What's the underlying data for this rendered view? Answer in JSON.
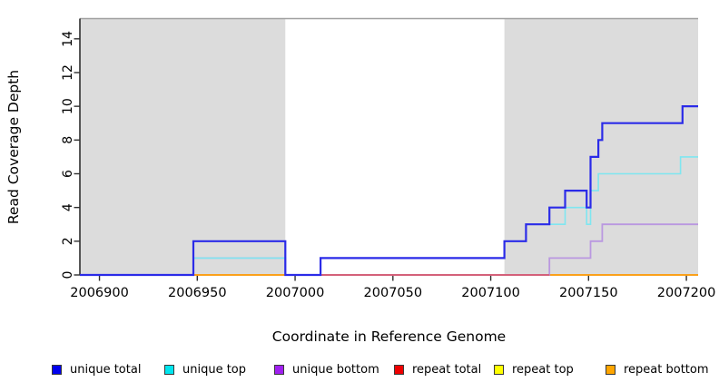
{
  "figure": {
    "x_title": "Coordinate in Reference Genome",
    "y_title": "Read Coverage Depth"
  },
  "chart_data": {
    "type": "line",
    "subtype": "step-coverage-plot",
    "xlabel": "Coordinate in Reference Genome",
    "ylabel": "Read Coverage Depth",
    "xlim": [
      2006890,
      2007206
    ],
    "ylim": [
      0,
      15.2
    ],
    "x_ticks": [
      2006900,
      2006950,
      2007000,
      2007050,
      2007100,
      2007150,
      2007200
    ],
    "y_ticks": [
      0,
      2,
      4,
      6,
      8,
      10,
      12,
      14
    ],
    "grid": "off",
    "legend_position": "bottom",
    "shaded_regions": [
      {
        "name": "repeat-region-left",
        "x0": 2006890,
        "x1": 2006995,
        "color": "#DCDCDC"
      },
      {
        "name": "repeat-region-right",
        "x0": 2007107,
        "x1": 2007206,
        "color": "#DCDCDC"
      }
    ],
    "top_border_color": "#A0A0A0",
    "axis_color": "#2f2f2f",
    "series": [
      {
        "name": "repeat top",
        "color": "#FFFF00",
        "opacity": 1,
        "width": 1.4,
        "points": [
          [
            2006948,
            0
          ],
          [
            2007206,
            0
          ]
        ]
      },
      {
        "name": "repeat bottom",
        "color": "#FF9912",
        "opacity": 1,
        "width": 1.8,
        "points": [
          [
            2006948,
            0
          ],
          [
            2007206,
            0
          ]
        ]
      },
      {
        "name": "unique bottom",
        "color": "#B48CE0",
        "opacity": 0.85,
        "width": 1.8,
        "points": [
          [
            2006890,
            0
          ],
          [
            2006948,
            0
          ],
          [
            2006948,
            1
          ],
          [
            2006995,
            1
          ],
          [
            2006995,
            0
          ],
          [
            2007130,
            0
          ],
          [
            2007130,
            1
          ],
          [
            2007151,
            1
          ],
          [
            2007151,
            2
          ],
          [
            2007157,
            2
          ],
          [
            2007157,
            3
          ],
          [
            2007206,
            3
          ]
        ]
      },
      {
        "name": "repeat total",
        "color": "#D84868",
        "opacity": 0.9,
        "width": 1.6,
        "points": [
          [
            2007013,
            0
          ],
          [
            2007130,
            0
          ]
        ]
      },
      {
        "name": "unique top",
        "color": "#7FE6F0",
        "opacity": 1,
        "width": 1.6,
        "points": [
          [
            2006890,
            0
          ],
          [
            2006948,
            0
          ],
          [
            2006948,
            1
          ],
          [
            2006995,
            1
          ],
          [
            2006995,
            0
          ],
          [
            2007013,
            0
          ],
          [
            2007013,
            1
          ],
          [
            2007107,
            1
          ],
          [
            2007107,
            2
          ],
          [
            2007118,
            2
          ],
          [
            2007118,
            3
          ],
          [
            2007138,
            3
          ],
          [
            2007138,
            4
          ],
          [
            2007149,
            4
          ],
          [
            2007149,
            3
          ],
          [
            2007151,
            3
          ],
          [
            2007151,
            5
          ],
          [
            2007155,
            5
          ],
          [
            2007155,
            6
          ],
          [
            2007197,
            6
          ],
          [
            2007197,
            7
          ],
          [
            2007206,
            7
          ]
        ]
      },
      {
        "name": "unique total",
        "color": "#2B2BE8",
        "opacity": 1,
        "width": 2.2,
        "points": [
          [
            2006890,
            0
          ],
          [
            2006948,
            0
          ],
          [
            2006948,
            2
          ],
          [
            2006995,
            2
          ],
          [
            2006995,
            0
          ],
          [
            2007013,
            0
          ],
          [
            2007013,
            1
          ],
          [
            2007107,
            1
          ],
          [
            2007107,
            2
          ],
          [
            2007118,
            2
          ],
          [
            2007118,
            3
          ],
          [
            2007130,
            3
          ],
          [
            2007130,
            4
          ],
          [
            2007138,
            4
          ],
          [
            2007138,
            5
          ],
          [
            2007149,
            5
          ],
          [
            2007149,
            4
          ],
          [
            2007151,
            4
          ],
          [
            2007151,
            7
          ],
          [
            2007155,
            7
          ],
          [
            2007155,
            8
          ],
          [
            2007157,
            8
          ],
          [
            2007157,
            9
          ],
          [
            2007198,
            9
          ],
          [
            2007198,
            10
          ],
          [
            2007206,
            10
          ]
        ]
      }
    ],
    "legend": [
      {
        "label": "unique total",
        "color": "#0000EE"
      },
      {
        "label": "unique top",
        "color": "#00E5EE"
      },
      {
        "label": "unique bottom",
        "color": "#A020F0"
      },
      {
        "label": "repeat total",
        "color": "#EE0000"
      },
      {
        "label": "repeat top",
        "color": "#FFFF00"
      },
      {
        "label": "repeat bottom",
        "color": "#FFA500"
      }
    ]
  }
}
